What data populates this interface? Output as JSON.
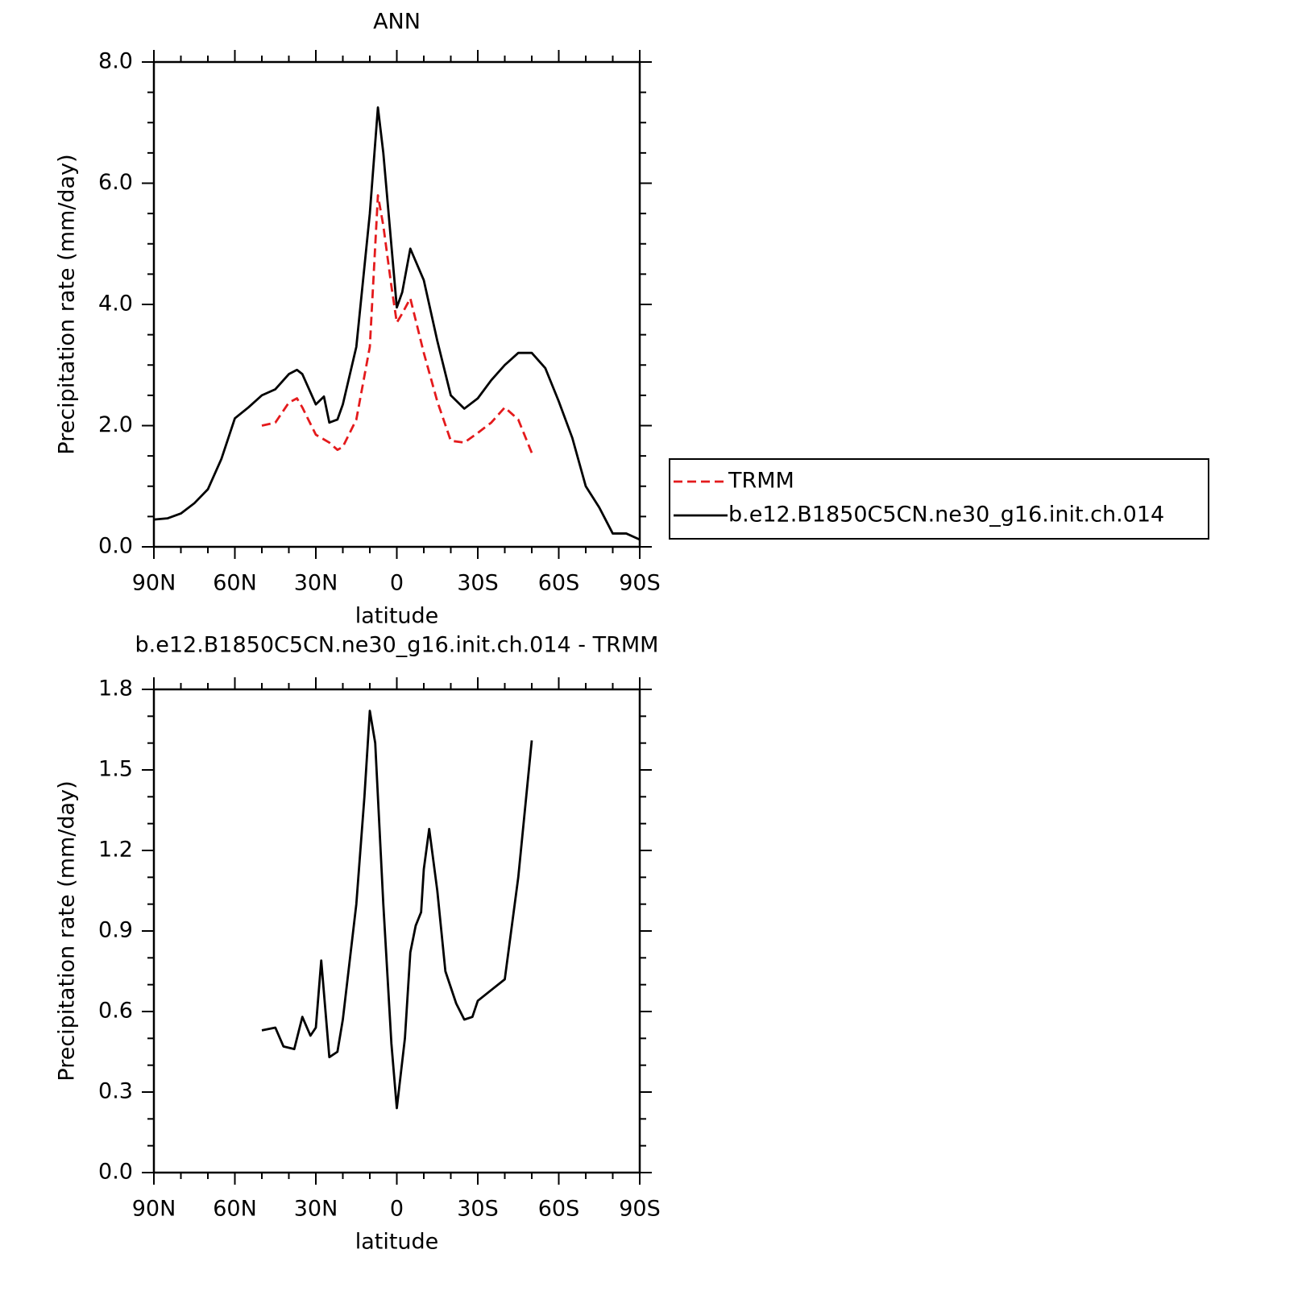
{
  "chart_data": [
    {
      "type": "line",
      "title": "ANN",
      "xlabel": "latitude",
      "ylabel": "Precipitation rate (mm/day)",
      "xlim": [
        90,
        -90
      ],
      "xticks": [
        {
          "value": 90,
          "label": "90N"
        },
        {
          "value": 60,
          "label": "60N"
        },
        {
          "value": 30,
          "label": "30N"
        },
        0,
        {
          "value": -30,
          "label": "30S"
        },
        {
          "value": -60,
          "label": "60S"
        },
        {
          "value": -90,
          "label": "90S"
        }
      ],
      "ylim": [
        0,
        8
      ],
      "yticks": [
        {
          "value": 0,
          "label": "0.0"
        },
        {
          "value": 2,
          "label": "2.0"
        },
        {
          "value": 4,
          "label": "4.0"
        },
        {
          "value": 6,
          "label": "6.0"
        },
        {
          "value": 8,
          "label": "8.0"
        }
      ],
      "legend": "right",
      "series": [
        {
          "name": "TRMM",
          "color": "#e41a1c",
          "dash": true,
          "x": [
            50,
            45,
            40,
            37,
            35,
            30,
            25,
            22,
            20,
            15,
            10,
            7,
            5,
            2,
            0,
            -2,
            -5,
            -10,
            -15,
            -20,
            -25,
            -30,
            -35,
            -40,
            -45,
            -50
          ],
          "values": [
            2.0,
            2.05,
            2.38,
            2.45,
            2.3,
            1.85,
            1.72,
            1.6,
            1.65,
            2.1,
            3.3,
            5.8,
            5.3,
            4.3,
            3.7,
            3.85,
            4.1,
            3.2,
            2.4,
            1.75,
            1.72,
            1.88,
            2.05,
            2.3,
            2.1,
            1.55
          ]
        },
        {
          "name": "b.e12.B1850C5CN.ne30_g16.init.ch.014",
          "color": "#000000",
          "dash": false,
          "x": [
            90,
            85,
            80,
            75,
            70,
            65,
            60,
            55,
            50,
            45,
            40,
            37,
            35,
            30,
            27,
            25,
            22,
            20,
            15,
            10,
            7,
            5,
            0,
            -2,
            -5,
            -10,
            -15,
            -20,
            -25,
            -30,
            -35,
            -40,
            -45,
            -50,
            -55,
            -60,
            -65,
            -70,
            -75,
            -80,
            -85,
            -90
          ],
          "values": [
            0.45,
            0.47,
            0.55,
            0.72,
            0.95,
            1.45,
            2.12,
            2.3,
            2.5,
            2.6,
            2.85,
            2.92,
            2.85,
            2.35,
            2.48,
            2.05,
            2.1,
            2.35,
            3.3,
            5.5,
            7.25,
            6.5,
            3.95,
            4.2,
            4.92,
            4.4,
            3.4,
            2.5,
            2.28,
            2.45,
            2.75,
            3.0,
            3.2,
            3.2,
            2.95,
            2.4,
            1.8,
            1.0,
            0.65,
            0.22,
            0.22,
            0.12
          ]
        }
      ]
    },
    {
      "type": "line",
      "title": "b.e12.B1850C5CN.ne30_g16.init.ch.014 - TRMM",
      "xlabel": "latitude",
      "ylabel": "Precipitation rate (mm/day)",
      "xlim": [
        90,
        -90
      ],
      "xticks": [
        {
          "value": 90,
          "label": "90N"
        },
        {
          "value": 60,
          "label": "60N"
        },
        {
          "value": 30,
          "label": "30N"
        },
        0,
        {
          "value": -30,
          "label": "30S"
        },
        {
          "value": -60,
          "label": "60S"
        },
        {
          "value": -90,
          "label": "90S"
        }
      ],
      "ylim": [
        0,
        1.8
      ],
      "yticks": [
        {
          "value": 0,
          "label": "0.0"
        },
        0.3,
        0.6,
        0.9,
        1.2,
        1.5,
        1.8
      ],
      "series": [
        {
          "color": "#000000",
          "dash": false,
          "x": [
            50,
            45,
            42,
            38,
            35,
            32,
            30,
            28,
            25,
            22,
            20,
            15,
            12,
            10,
            8,
            5,
            2,
            0,
            -3,
            -5,
            -7,
            -9,
            -10,
            -12,
            -15,
            -18,
            -22,
            -25,
            -28,
            -30,
            -35,
            -40,
            -45,
            -50
          ],
          "values": [
            0.53,
            0.54,
            0.47,
            0.46,
            0.58,
            0.51,
            0.54,
            0.79,
            0.43,
            0.45,
            0.57,
            1.0,
            1.4,
            1.72,
            1.6,
            1.0,
            0.48,
            0.24,
            0.5,
            0.82,
            0.92,
            0.97,
            1.13,
            1.28,
            1.05,
            0.75,
            0.63,
            0.57,
            0.58,
            0.64,
            0.68,
            0.72,
            1.1,
            1.61
          ]
        }
      ]
    }
  ]
}
